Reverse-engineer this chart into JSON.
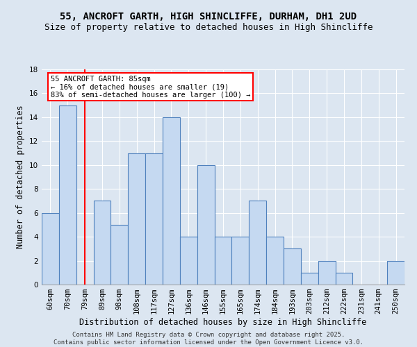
{
  "title_line1": "55, ANCROFT GARTH, HIGH SHINCLIFFE, DURHAM, DH1 2UD",
  "title_line2": "Size of property relative to detached houses in High Shincliffe",
  "xlabel": "Distribution of detached houses by size in High Shincliffe",
  "ylabel": "Number of detached properties",
  "categories": [
    "60sqm",
    "70sqm",
    "79sqm",
    "89sqm",
    "98sqm",
    "108sqm",
    "117sqm",
    "127sqm",
    "136sqm",
    "146sqm",
    "155sqm",
    "165sqm",
    "174sqm",
    "184sqm",
    "193sqm",
    "203sqm",
    "212sqm",
    "222sqm",
    "231sqm",
    "241sqm",
    "250sqm"
  ],
  "values": [
    6,
    15,
    0,
    7,
    5,
    11,
    11,
    14,
    4,
    10,
    4,
    4,
    7,
    4,
    3,
    1,
    2,
    1,
    0,
    0,
    2
  ],
  "bar_color": "#c5d9f1",
  "bar_edge_color": "#4f81bd",
  "red_line_x": 2.0,
  "annotation_text": "55 ANCROFT GARTH: 85sqm\n← 16% of detached houses are smaller (19)\n83% of semi-detached houses are larger (100) →",
  "annotation_box_color": "white",
  "annotation_box_edge": "red",
  "ylim": [
    0,
    18
  ],
  "yticks": [
    0,
    2,
    4,
    6,
    8,
    10,
    12,
    14,
    16,
    18
  ],
  "footer_text": "Contains HM Land Registry data © Crown copyright and database right 2025.\nContains public sector information licensed under the Open Government Licence v3.0.",
  "background_color": "#dce6f1",
  "plot_background_color": "#dce6f1",
  "grid_color": "white",
  "title_fontsize": 10,
  "subtitle_fontsize": 9,
  "axis_label_fontsize": 8.5,
  "tick_fontsize": 7.5,
  "annotation_fontsize": 7.5,
  "footer_fontsize": 6.5
}
